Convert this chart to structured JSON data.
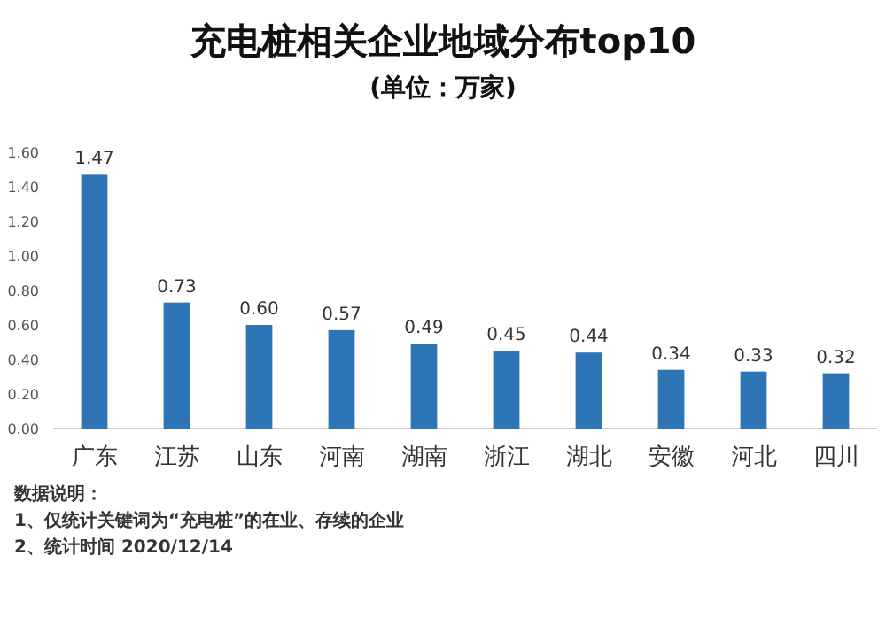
{
  "chart_data": {
    "type": "bar",
    "title": "充电桩相关企业地域分布top10",
    "subtitle": "(单位：万家)",
    "categories": [
      "广东",
      "江苏",
      "山东",
      "河南",
      "湖南",
      "浙江",
      "湖北",
      "安徽",
      "河北",
      "四川"
    ],
    "values": [
      1.47,
      0.73,
      0.6,
      0.57,
      0.49,
      0.45,
      0.44,
      0.34,
      0.33,
      0.32
    ],
    "color": "#2e75b6",
    "value_labels": [
      "1.47",
      "0.73",
      "0.60",
      "0.57",
      "0.49",
      "0.45",
      "0.44",
      "0.34",
      "0.33",
      "0.32"
    ],
    "ylim": [
      0,
      1.6
    ],
    "yticks": [
      {
        "value": 0,
        "label": "0.00"
      },
      {
        "value": 0.2,
        "label": "0.20"
      },
      {
        "value": 0.4,
        "label": "0.40"
      },
      {
        "value": 0.6,
        "label": "0.60"
      },
      {
        "value": 0.8,
        "label": "0.80"
      },
      {
        "value": 1.0,
        "label": "1.00"
      },
      {
        "value": 1.2,
        "label": "1.20"
      },
      {
        "value": 1.4,
        "label": "1.40"
      },
      {
        "value": 1.6,
        "label": "1.60"
      }
    ],
    "annotations": [
      "数据说明：",
      "1、仅统计关键词为“充电桩”的在业、存续的企业",
      "2、统计时间 2020/12/14"
    ]
  }
}
